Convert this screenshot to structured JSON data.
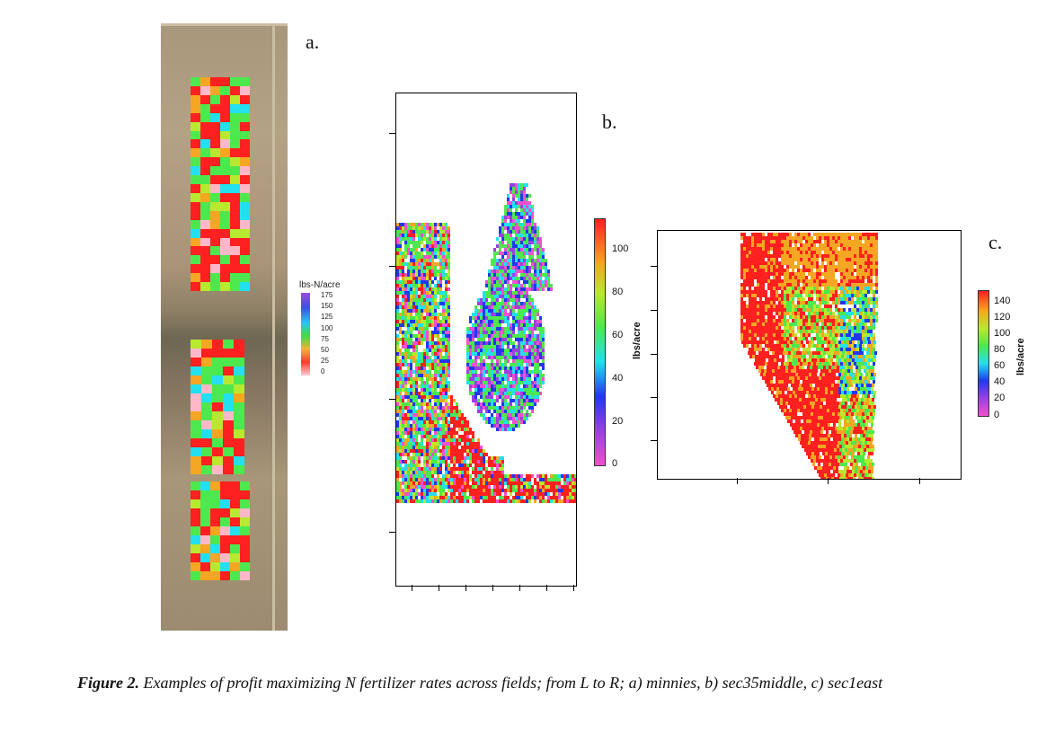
{
  "figure": {
    "panel_a": {
      "label": "a.",
      "legend": {
        "title": "lbs-N/acre",
        "ticks": [
          "175",
          "150",
          "125",
          "100",
          "75",
          "50",
          "25",
          "0"
        ]
      }
    },
    "panel_b": {
      "label": "b.",
      "colorbar": {
        "title": "lbs/acre",
        "ticks": [
          "100",
          "80",
          "60",
          "40",
          "20",
          "0"
        ]
      }
    },
    "panel_c": {
      "label": "c.",
      "colorbar": {
        "title": "lbs/acre",
        "ticks": [
          "140",
          "120",
          "100",
          "80",
          "60",
          "40",
          "20",
          "0"
        ]
      }
    },
    "caption": {
      "lead": "Figure 2.",
      "text": " Examples of profit maximizing N fertilizer rates across fields; from L to R; a) minnies, b) sec35middle, c) sec1east"
    }
  },
  "palette": {
    "red": "#ff2020",
    "orange": "#f5a623",
    "green": "#4de84d",
    "lime": "#b8e830",
    "cyan": "#22e0f0",
    "blue": "#2038f0",
    "purple": "#9b40e0",
    "magenta": "#f050d0",
    "pink": "#ffb8c8"
  }
}
